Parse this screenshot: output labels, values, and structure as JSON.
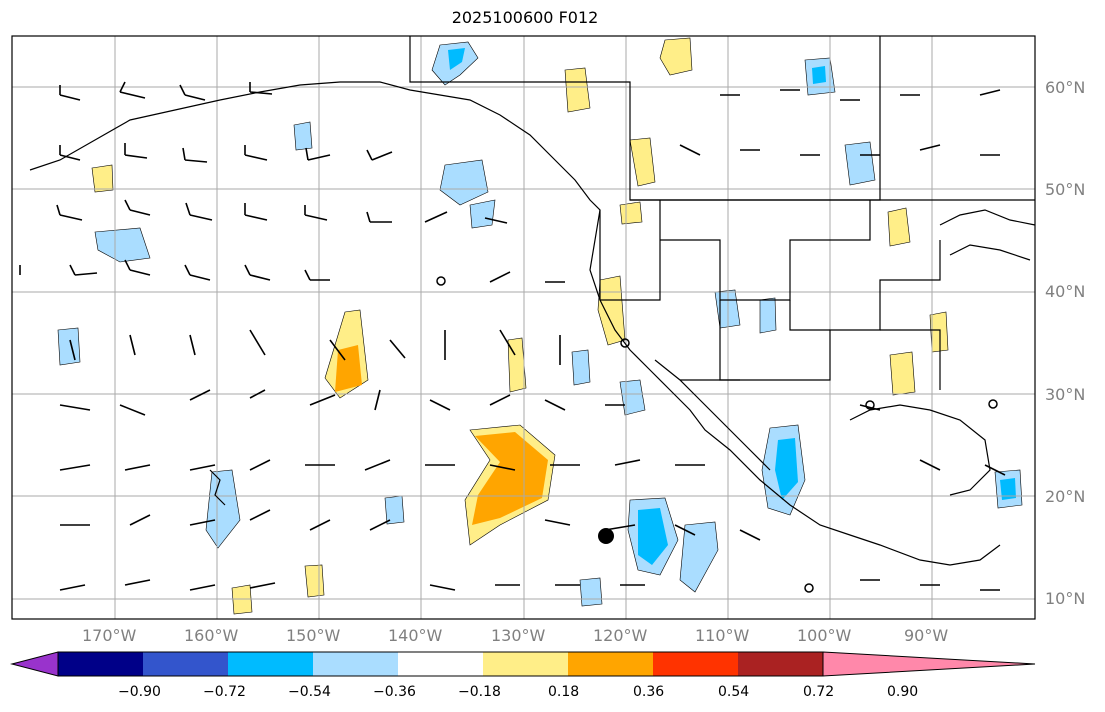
{
  "title": "2025100600 F012",
  "lon_labels": [
    "170°W",
    "160°W",
    "150°W",
    "140°W",
    "130°W",
    "120°W",
    "110°W",
    "100°W",
    "90°W"
  ],
  "lat_labels": [
    "60°N",
    "50°N",
    "40°N",
    "30°N",
    "20°N",
    "10°N"
  ],
  "colorbar": {
    "ticks": [
      "−0.90",
      "−0.72",
      "−0.54",
      "−0.36",
      "−0.18",
      "0.18",
      "0.36",
      "0.54",
      "0.72",
      "0.90"
    ],
    "colors": [
      "#9933cc",
      "#000088",
      "#3355cc",
      "#00bbff",
      "#aaddff",
      "#ffffff",
      "#ffee88",
      "#ffa500",
      "#ff3300",
      "#aa2222",
      "#ff88aa"
    ]
  }
}
